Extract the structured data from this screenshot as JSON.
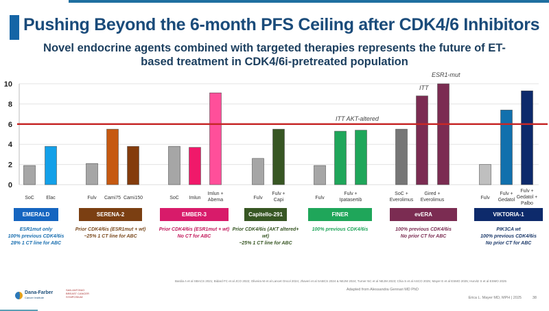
{
  "title": "Pushing Beyond the 6-month PFS Ceiling after CDK4/6 Inhibitors",
  "subtitle": "Novel endocrine agents combined with targeted therapies represents the future of ET-based treatment in CDK4/6i-pretreated population",
  "chart_data": {
    "type": "bar",
    "ylim": [
      0,
      10
    ],
    "yticks": [
      "0",
      "2",
      "4",
      "6",
      "8",
      "10"
    ],
    "grid": true,
    "reference_line": {
      "value": 6,
      "color": "#c62828"
    },
    "annotations": [
      {
        "text": "ITT  AKT-altered",
        "near": "FINER"
      },
      {
        "text": "ITT",
        "near": "Gired + Everolimus"
      },
      {
        "text": "ESR1-mut",
        "near": "evERA third bar"
      }
    ],
    "groups": [
      {
        "name": "EMERALD",
        "color": "#1565c0",
        "note": "ESR1mut only\n100% previous CDK4/6is\n28% 1 CT line for ABC",
        "note_color": "#1a6fb0",
        "bars": [
          {
            "label": "SoC",
            "value": 1.9,
            "color": "#a6a6a6"
          },
          {
            "label": "Elac",
            "value": 3.8,
            "color": "#13a0e8"
          }
        ]
      },
      {
        "name": "SERENA-2",
        "color": "#7b3f12",
        "note": "Prior CDK4/6is (ESR1mut + wt)\n~25% 1 CT line for ABC",
        "note_color": "#7b4a1e",
        "bars": [
          {
            "label": "Fulv",
            "value": 2.1,
            "color": "#a6a6a6"
          },
          {
            "label": "Cami75",
            "value": 5.5,
            "color": "#c65911"
          },
          {
            "label": "Cami150",
            "value": 3.8,
            "color": "#843c0c"
          }
        ]
      },
      {
        "name": "EMBER-3",
        "color": "#d81b6a",
        "note": "Prior CDK4/6is (ESR1mut + wt)\nNo CT for ABC",
        "note_color": "#c2185b",
        "bars": [
          {
            "label": "SoC",
            "value": 3.8,
            "color": "#a6a6a6"
          },
          {
            "label": "Imlun",
            "value": 3.7,
            "color": "#f0196a"
          },
          {
            "label": "Imlun +\nAbema",
            "value": 9.1,
            "color": "#ff4f9a"
          }
        ]
      },
      {
        "name": "Capitello-291",
        "color": "#375623",
        "note": "Prior CDK4/6is (AKT altered+ wt)\n~25% 1 CT line for ABC",
        "note_color": "#375623",
        "bars": [
          {
            "label": "Fulv",
            "value": 2.6,
            "color": "#a6a6a6"
          },
          {
            "label": "Fulv +\nCapi",
            "value": 5.5,
            "color": "#375623"
          }
        ]
      },
      {
        "name": "FINER",
        "color": "#1fa65a",
        "note": "100% previous CDK4/6is",
        "note_color": "#1fa65a",
        "bars": [
          {
            "label": "Fulv",
            "value": 1.9,
            "color": "#a6a6a6"
          },
          {
            "label": "Fulv +\nIpatasertib",
            "value": 5.3,
            "color": "#1fa65a"
          },
          {
            "label": "",
            "value": 5.4,
            "color": "#1fa65a"
          }
        ]
      },
      {
        "name": "evERA",
        "color": "#7b2c52",
        "note": "100% previous CDK4/6is\nNo prior CT for ABC",
        "note_color": "#7b2c52",
        "bars": [
          {
            "label": "SoC +\nEverolimus",
            "value": 5.5,
            "color": "#767676"
          },
          {
            "label": "Gired +\nEverolimus",
            "value": 8.8,
            "color": "#7b2c52"
          },
          {
            "label": "",
            "value": 10.0,
            "color": "#7b2c52"
          }
        ]
      },
      {
        "name": "VIKTORIA-1",
        "color": "#0d2a6b",
        "note": "PIK3CA wt\n100% previous CDK4/6is\nNo prior CT for ABC",
        "note_color": "#1c3a6b",
        "bars": [
          {
            "label": "Fulv",
            "value": 2.0,
            "color": "#bfbfbf"
          },
          {
            "label": "Fulv +\nGedatol",
            "value": 7.4,
            "color": "#1170ad"
          },
          {
            "label": "Fulv +\nGedatol +\nPalbo",
            "value": 9.3,
            "color": "#0d2a6b"
          }
        ]
      }
    ]
  },
  "footer": {
    "references": "Bardia A et al SBACS 2021; Bidard FC et al JCO 2022; Oliveira M et al Lancet Oncol 2024; Jhaveri et al SABCS 2024 & NEJM 2024; Turner NC et al NEJM 2023; Chia S et al ASCO 2025; Mayer E et al ESMO 2025; Hurvitz S et al ESMO 2025",
    "adapted": "Adapted from Alessandra Gennari MD PhD",
    "author": "Erica L. Mayer MD, MPH  |  2025",
    "page": "38",
    "logo1": "Dana-Farber Cancer Institute",
    "logo2": "San Antonio Breast Cancer Symposium"
  }
}
